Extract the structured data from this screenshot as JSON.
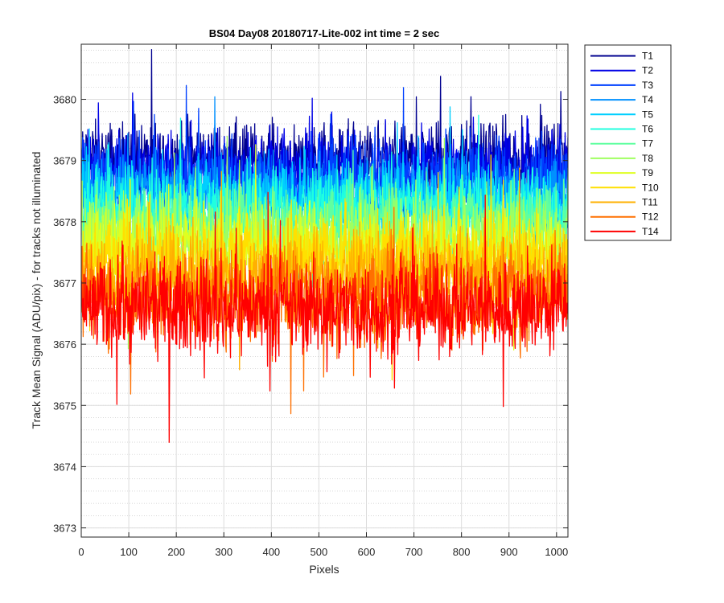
{
  "chart_data": {
    "type": "line",
    "title": "BS04 Day08 20180717-Lite-002 int time = 2 sec",
    "xlabel": "Pixels",
    "ylabel": "Track Mean Signal (ADU/pix) - for tracks not illuminated",
    "xlim": [
      0,
      1024
    ],
    "ylim": [
      3672.85,
      3680.9
    ],
    "xticks": [
      0,
      100,
      200,
      300,
      400,
      500,
      600,
      700,
      800,
      900,
      1000
    ],
    "yticks": [
      3673,
      3674,
      3675,
      3676,
      3677,
      3678,
      3679,
      3680
    ],
    "grid": true,
    "minor_grid_y": true,
    "legend_position": "outside-top-right",
    "x_range": [
      1,
      1024
    ],
    "series": [
      {
        "name": "T1",
        "color": "#00008f",
        "center": 3679.0,
        "spread": 0.65
      },
      {
        "name": "T2",
        "color": "#0000e6",
        "center": 3678.85,
        "spread": 0.65
      },
      {
        "name": "T3",
        "color": "#0040ff",
        "center": 3678.7,
        "spread": 0.65
      },
      {
        "name": "T4",
        "color": "#0090ff",
        "center": 3678.5,
        "spread": 0.65
      },
      {
        "name": "T5",
        "color": "#00cfff",
        "center": 3678.35,
        "spread": 0.65
      },
      {
        "name": "T6",
        "color": "#20ffdf",
        "center": 3678.2,
        "spread": 0.65
      },
      {
        "name": "T7",
        "color": "#60ffa0",
        "center": 3678.0,
        "spread": 0.65
      },
      {
        "name": "T8",
        "color": "#9fff60",
        "center": 3677.8,
        "spread": 0.68
      },
      {
        "name": "T9",
        "color": "#dfff20",
        "center": 3677.6,
        "spread": 0.7
      },
      {
        "name": "T10",
        "color": "#ffe000",
        "center": 3677.4,
        "spread": 0.72
      },
      {
        "name": "T11",
        "color": "#ffb000",
        "center": 3677.1,
        "spread": 0.75
      },
      {
        "name": "T12",
        "color": "#ff7000",
        "center": 3676.8,
        "spread": 0.8
      },
      {
        "name": "T14",
        "color": "#ff0000",
        "center": 3676.6,
        "spread": 0.8
      }
    ]
  }
}
